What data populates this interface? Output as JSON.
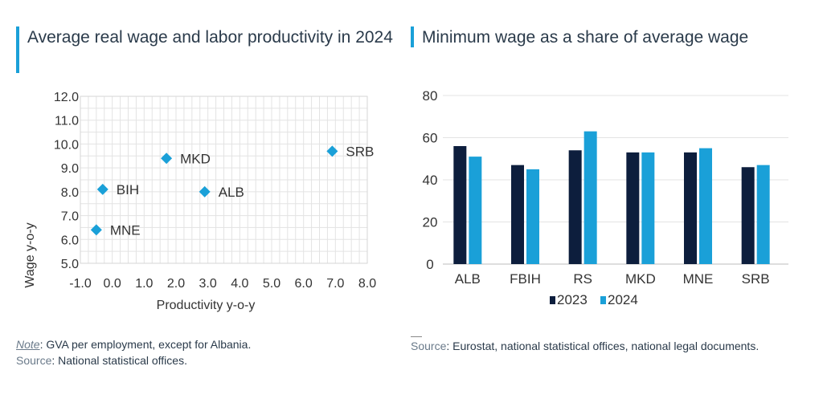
{
  "left": {
    "title": "Average real wage and labor productivity in 2024",
    "note_label": "Note",
    "note_text": ": GVA per employment, except for Albania.",
    "source_label": "Source",
    "source_text": ": National statistical offices."
  },
  "right": {
    "title": "Minimum wage as a share of average wage",
    "source_label": "Source",
    "source_text": ": Eurostat, national statistical offices, national legal documents."
  },
  "colors": {
    "accent": "#1aa0d8",
    "dark_series": "#0d1e3d",
    "light_series": "#1aa0d8",
    "grid": "#e3e3e3"
  },
  "chart_data": [
    {
      "type": "scatter",
      "title": "Average real wage and labor productivity in 2024",
      "xlabel": "Productivity y-o-y",
      "ylabel": "Wage y-o-y",
      "xlim": [
        -1.0,
        8.0
      ],
      "ylim": [
        5.0,
        12.0
      ],
      "x_ticks": [
        "-1.0",
        "0.0",
        "1.0",
        "2.0",
        "3.0",
        "4.0",
        "5.0",
        "6.0",
        "7.0",
        "8.0"
      ],
      "y_ticks": [
        "5.0",
        "6.0",
        "7.0",
        "8.0",
        "9.0",
        "10.0",
        "11.0",
        "12.0"
      ],
      "grid": true,
      "points": [
        {
          "label": "SRB",
          "x": 6.9,
          "y": 9.7
        },
        {
          "label": "MKD",
          "x": 1.7,
          "y": 9.4
        },
        {
          "label": "BIH",
          "x": -0.3,
          "y": 8.1
        },
        {
          "label": "ALB",
          "x": 2.9,
          "y": 8.0
        },
        {
          "label": "MNE",
          "x": -0.5,
          "y": 6.4
        }
      ]
    },
    {
      "type": "bar",
      "title": "Minimum wage as a share of average wage",
      "categories": [
        "ALB",
        "FBIH",
        "RS",
        "MKD",
        "MNE",
        "SRB"
      ],
      "series": [
        {
          "name": "2023",
          "values": [
            56,
            47,
            54,
            53,
            53,
            46
          ]
        },
        {
          "name": "2024",
          "values": [
            51,
            45,
            63,
            53,
            55,
            47
          ]
        }
      ],
      "ylim": [
        0,
        80
      ],
      "y_ticks": [
        "0",
        "20",
        "40",
        "60",
        "80"
      ],
      "grid": true,
      "legend_position": "bottom"
    }
  ]
}
